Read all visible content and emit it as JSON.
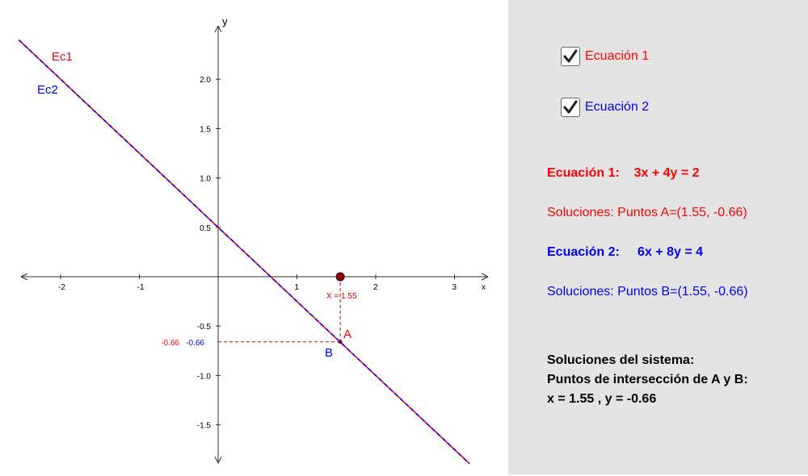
{
  "chart_data": {
    "type": "line",
    "axes": {
      "x_label": "x",
      "y_label": "y",
      "x_range": [
        -2.5,
        3.4
      ],
      "y_range": [
        -1.88,
        2.46
      ],
      "x_ticks": [
        -2,
        -1,
        1,
        2,
        3
      ],
      "x_tick_labels": [
        "-2",
        "-1",
        "1",
        "2",
        "3"
      ],
      "y_ticks": [
        2.0,
        1.5,
        1.0,
        0.5,
        -0.5,
        -1.0,
        -1.5
      ],
      "y_tick_labels": [
        "2.0",
        "1.5",
        "1.0",
        "0.5",
        "-0.5",
        "-1.0",
        "-1.5"
      ],
      "grid": false
    },
    "series": [
      {
        "name": "Ec1",
        "equation": "3x + 4y = 2",
        "color": "#ff0000"
      },
      {
        "name": "Ec2",
        "equation": "6x + 8y = 4",
        "color": "#0000ff"
      }
    ],
    "points": [
      {
        "name": "A",
        "x": 1.55,
        "y": -0.66,
        "color": "#cc0000"
      },
      {
        "name": "B",
        "x": 1.55,
        "y": -0.66,
        "color": "#0000cc"
      }
    ],
    "slider_point": {
      "x": 1.55,
      "color": "#990000"
    },
    "annotations": {
      "x_value": "X = 1.55",
      "y_value_red": "-0.66",
      "y_value_blue": "-0.66"
    }
  },
  "panel": {
    "background": "#e4e4e4",
    "checkbox1": {
      "label": "Ecuación 1",
      "checked": true,
      "color": "#ff0000"
    },
    "checkbox2": {
      "label": "Ecuación 2",
      "checked": true,
      "color": "#0000ff"
    },
    "eq1": {
      "prefix": "Ecuación 1:",
      "expr": "3x + 4y = 2"
    },
    "sol1": "Soluciones:   Puntos A=(1.55, -0.66)",
    "eq2": {
      "prefix": "Ecuación 2:",
      "expr": "6x + 8y = 4"
    },
    "sol2": "Soluciones:   Puntos B=(1.55, -0.66)",
    "system": {
      "line1": "Soluciones del sistema:",
      "line2": "Puntos de intersección de A y B:",
      "line3": "x = 1.55 , y = -0.66"
    }
  }
}
